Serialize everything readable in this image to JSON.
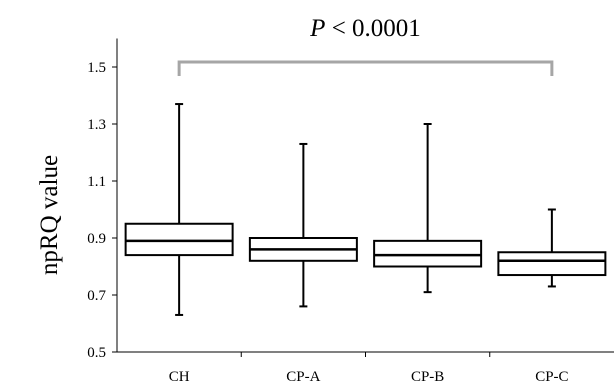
{
  "chart_data": {
    "type": "box",
    "ylabel": "npRQ value",
    "xlabel": "",
    "ylim": [
      0.5,
      1.6
    ],
    "yticks": [
      "0.5",
      "0.7",
      "0.9",
      "1.1",
      "1.3",
      "1.5"
    ],
    "categories": [
      "CH",
      "CP-A",
      "CP-B",
      "CP-C"
    ],
    "boxes": [
      {
        "min": 0.63,
        "q1": 0.84,
        "median": 0.89,
        "q3": 0.95,
        "max": 1.37
      },
      {
        "min": 0.66,
        "q1": 0.82,
        "median": 0.86,
        "q3": 0.9,
        "max": 1.23
      },
      {
        "min": 0.71,
        "q1": 0.8,
        "median": 0.84,
        "q3": 0.89,
        "max": 1.3
      },
      {
        "min": 0.73,
        "q1": 0.77,
        "median": 0.82,
        "q3": 0.85,
        "max": 1.0
      }
    ],
    "annotation": {
      "p_symbol": "P",
      "p_rest": " < 0.0001",
      "spans": [
        "CH",
        "CP-C"
      ]
    },
    "colors": {
      "box_stroke": "#000000",
      "axis": "#000000",
      "bracket": "#a6a6a6"
    }
  }
}
